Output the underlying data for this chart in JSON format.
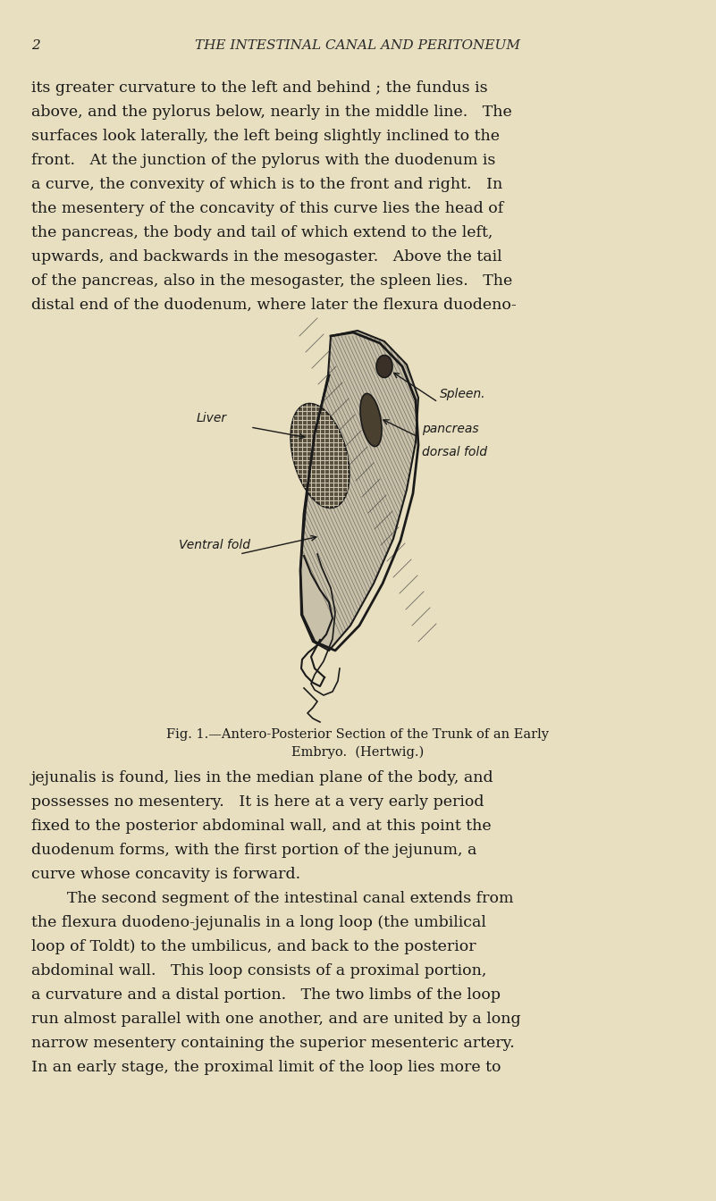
{
  "bg_color": "#e8dfc0",
  "page_number": "2",
  "header_text": "THE INTESTINAL CANAL AND PERITONEUM",
  "body_text_1": "its greater curvature to the left and behind ; the fundus is\nabove, and the pylorus below, nearly in the middle line.   The\nsurfaces look laterally, the left being slightly inclined to the\nfront.   At the junction of the pylorus with the duodenum is\na curve, the convexity of which is to the front and right.   In\nthe mesentery of the concavity of this curve lies the head of\nthe pancreas, the body and tail of which extend to the left,\nupwards, and backwards in the mesogaster.   Above the tail\nof the pancreas, also in the mesogaster, the spleen lies.   The\ndistal end of the duodenum, where later the flexura duodeno-",
  "fig_caption_line1": "Fig. 1.—Antero-Posterior Section of the Trunk of an Early",
  "fig_caption_line2": "Embryo.  (Hertwig.)",
  "body_text_2": "jejunalis is found, lies in the median plane of the body, and\npossesses no mesentery.   It is here at a very early period\nfixed to the posterior abdominal wall, and at this point the\nduodenum forms, with the first portion of the jejunum, a\ncurve whose concavity is forward.\n   The second segment of the intestinal canal extends from\nthe flexura duodeno-jejunalis in a long loop (the umbilical\nloop of Toldt) to the umbilicus, and back to the posterior\nabdominal wall.   This loop consists of a proximal portion,\na curvature and a distal portion.   The two limbs of the loop\nrun almost parallel with one another, and are united by a long\nnarrow mesentery containing the superior mesenteric artery.\nIn an early stage, the proximal limit of the loop lies more to",
  "text_color": "#1a1a1a",
  "header_color": "#2a2a2a"
}
